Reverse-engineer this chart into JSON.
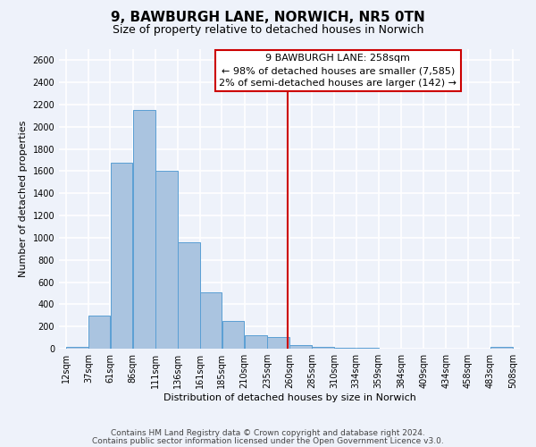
{
  "title": "9, BAWBURGH LANE, NORWICH, NR5 0TN",
  "subtitle": "Size of property relative to detached houses in Norwich",
  "xlabel": "Distribution of detached houses by size in Norwich",
  "ylabel": "Number of detached properties",
  "bin_edges": [
    12,
    37,
    61,
    86,
    111,
    136,
    161,
    185,
    210,
    235,
    260,
    285,
    310,
    334,
    359,
    384,
    409,
    434,
    458,
    483,
    508
  ],
  "bar_heights": [
    20,
    300,
    1680,
    2150,
    1600,
    960,
    510,
    250,
    120,
    105,
    35,
    20,
    10,
    5,
    3,
    2,
    2,
    2,
    1,
    20
  ],
  "bar_color": "#aac4e0",
  "bar_edge_color": "#5a9fd4",
  "vline_x": 258,
  "vline_color": "#cc0000",
  "ylim": [
    0,
    2700
  ],
  "yticks": [
    0,
    200,
    400,
    600,
    800,
    1000,
    1200,
    1400,
    1600,
    1800,
    2000,
    2200,
    2400,
    2600
  ],
  "annotation_title": "9 BAWBURGH LANE: 258sqm",
  "annotation_line1": "← 98% of detached houses are smaller (7,585)",
  "annotation_line2": "2% of semi-detached houses are larger (142) →",
  "annotation_box_color": "#ffffff",
  "annotation_box_edge_color": "#cc0000",
  "footer_line1": "Contains HM Land Registry data © Crown copyright and database right 2024.",
  "footer_line2": "Contains public sector information licensed under the Open Government Licence v3.0.",
  "background_color": "#eef2fa",
  "grid_color": "#ffffff",
  "title_fontsize": 11,
  "subtitle_fontsize": 9,
  "axis_label_fontsize": 8,
  "tick_fontsize": 7,
  "annotation_fontsize": 8,
  "footer_fontsize": 6.5
}
